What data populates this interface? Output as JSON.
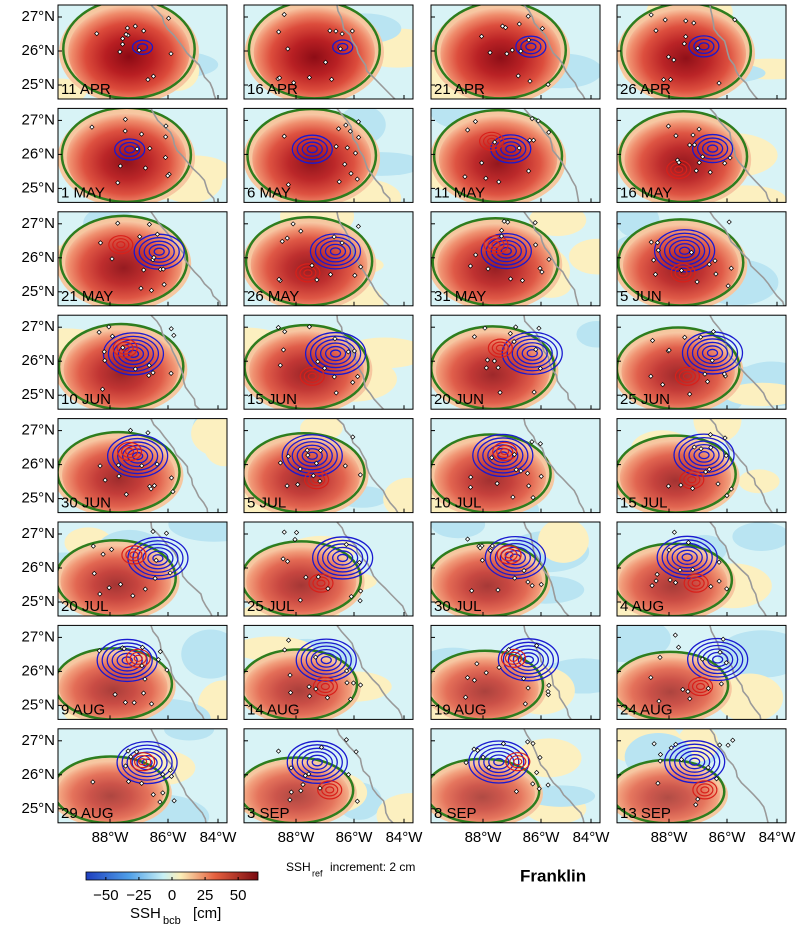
{
  "panels": [
    {
      "label": "11 APR"
    },
    {
      "label": "16 APR"
    },
    {
      "label": "21 APR"
    },
    {
      "label": "26 APR"
    },
    {
      "label": "1 MAY"
    },
    {
      "label": "6 MAY"
    },
    {
      "label": "11 MAY"
    },
    {
      "label": "16 MAY"
    },
    {
      "label": "21 MAY"
    },
    {
      "label": "26 MAY"
    },
    {
      "label": "31 MAY"
    },
    {
      "label": "5 JUN"
    },
    {
      "label": "10 JUN"
    },
    {
      "label": "15 JUN"
    },
    {
      "label": "20 JUN"
    },
    {
      "label": "25 JUN"
    },
    {
      "label": "30 JUN"
    },
    {
      "label": "5 JUL"
    },
    {
      "label": "10 JUL"
    },
    {
      "label": "15 JUL"
    },
    {
      "label": "20 JUL"
    },
    {
      "label": "25 JUL"
    },
    {
      "label": "30 JUL"
    },
    {
      "label": "4 AUG"
    },
    {
      "label": "9 AUG"
    },
    {
      "label": "14 AUG"
    },
    {
      "label": "19 AUG"
    },
    {
      "label": "24 AUG"
    },
    {
      "label": "29 AUG"
    },
    {
      "label": "3 SEP"
    },
    {
      "label": "8 SEP"
    },
    {
      "label": "13 SEP"
    }
  ],
  "y_tick_labels": [
    "27°N",
    "26°N",
    "25°N"
  ],
  "x_tick_labels": [
    "88°W",
    "86°W",
    "84°W"
  ],
  "colorbar": {
    "label": "SSH",
    "label_sub": "bcb",
    "unit": "[cm]",
    "lim": [
      -65,
      65
    ],
    "ticks": [
      {
        "value": -50,
        "label": "−50"
      },
      {
        "value": -25,
        "label": "−25"
      },
      0,
      25,
      50
    ]
  },
  "increment": {
    "prefix": "SSH",
    "sub": "ref",
    "text": "increment:  2 cm"
  },
  "title": "Franklin"
}
